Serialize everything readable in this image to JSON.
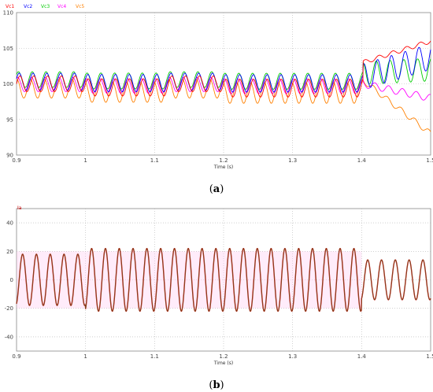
{
  "captions": {
    "a_left": "(",
    "a_letter": "a",
    "a_right": ")",
    "b_left": "(",
    "b_letter": "b",
    "b_right": ")"
  },
  "chart_data": [
    {
      "type": "line",
      "panel": "a",
      "xlabel": "Time (s)",
      "ylabel": "",
      "xlim": [
        0.9,
        1.5
      ],
      "ylim": [
        90,
        110
      ],
      "xticks": [
        "0.9",
        "1",
        "1.1",
        "1.2",
        "1.3",
        "1.4",
        "1.5"
      ],
      "yticks": [
        "90",
        "95",
        "100",
        "105",
        "110"
      ],
      "grid": true,
      "legend_position": "top-left",
      "ripple_hz": 50,
      "series": [
        {
          "name": "Vc1",
          "color": "#ff0000",
          "mean_before": 100.0,
          "ripple": 1.1,
          "after_fault": {
            "start": 1.402,
            "level_from": 103.0,
            "level_to": 106.0,
            "ripple": 0.3
          }
        },
        {
          "name": "Vc2",
          "color": "#0000ff",
          "mean_before": 100.3,
          "ripple": 1.2,
          "after_fault": {
            "start": 1.402,
            "level_from": 101.0,
            "level_to": 103.8,
            "ripple": 1.8
          }
        },
        {
          "name": "Vc3",
          "color": "#00cc00",
          "mean_before": 100.6,
          "ripple": 1.1,
          "after_fault": {
            "start": 1.402,
            "level_from": 101.5,
            "level_to": 102.0,
            "ripple": 1.6
          }
        },
        {
          "name": "Vc4",
          "color": "#ff00ff",
          "mean_before": 99.9,
          "ripple": 1.0,
          "after_fault": {
            "start": 1.402,
            "level_from": 100.0,
            "level_to": 98.0,
            "ripple": 0.5
          }
        },
        {
          "name": "Vc5",
          "color": "#ff8000",
          "mean_before": 99.3,
          "ripple": 1.3,
          "after_fault": {
            "start": 1.402,
            "level_from": 100.5,
            "level_to": 93.0,
            "ripple": 0.4
          }
        }
      ],
      "ripple_dips": [
        {
          "t_from": 1.0,
          "t_to": 1.12,
          "depth": 1.0
        },
        {
          "t_from": 1.2,
          "t_to": 1.4,
          "depth": 1.2
        }
      ]
    },
    {
      "type": "line",
      "panel": "b",
      "xlabel": "Time (s)",
      "ylabel": "",
      "xlim": [
        0.9,
        1.5
      ],
      "ylim": [
        -50,
        50
      ],
      "xticks": [
        "0.9",
        "1",
        "1.1",
        "1.2",
        "1.3",
        "1.4",
        "1.5"
      ],
      "yticks": [
        "-40",
        "-20",
        "0",
        "20",
        "40"
      ],
      "grid": true,
      "legend_position": "top-left",
      "frequency_hz": 50,
      "series": [
        {
          "name": "Ia",
          "color": "#cc0000",
          "amplitude_segments": [
            {
              "t_from": 0.9,
              "t_to": 1.0,
              "amplitude": 18
            },
            {
              "t_from": 1.0,
              "t_to": 1.4,
              "amplitude": 22
            },
            {
              "t_from": 1.4,
              "t_to": 1.5,
              "amplitude": 14
            }
          ]
        }
      ],
      "band_color": "#ffc8f0",
      "band_amplitude": 20,
      "overlay_color": "#556b2f"
    }
  ]
}
